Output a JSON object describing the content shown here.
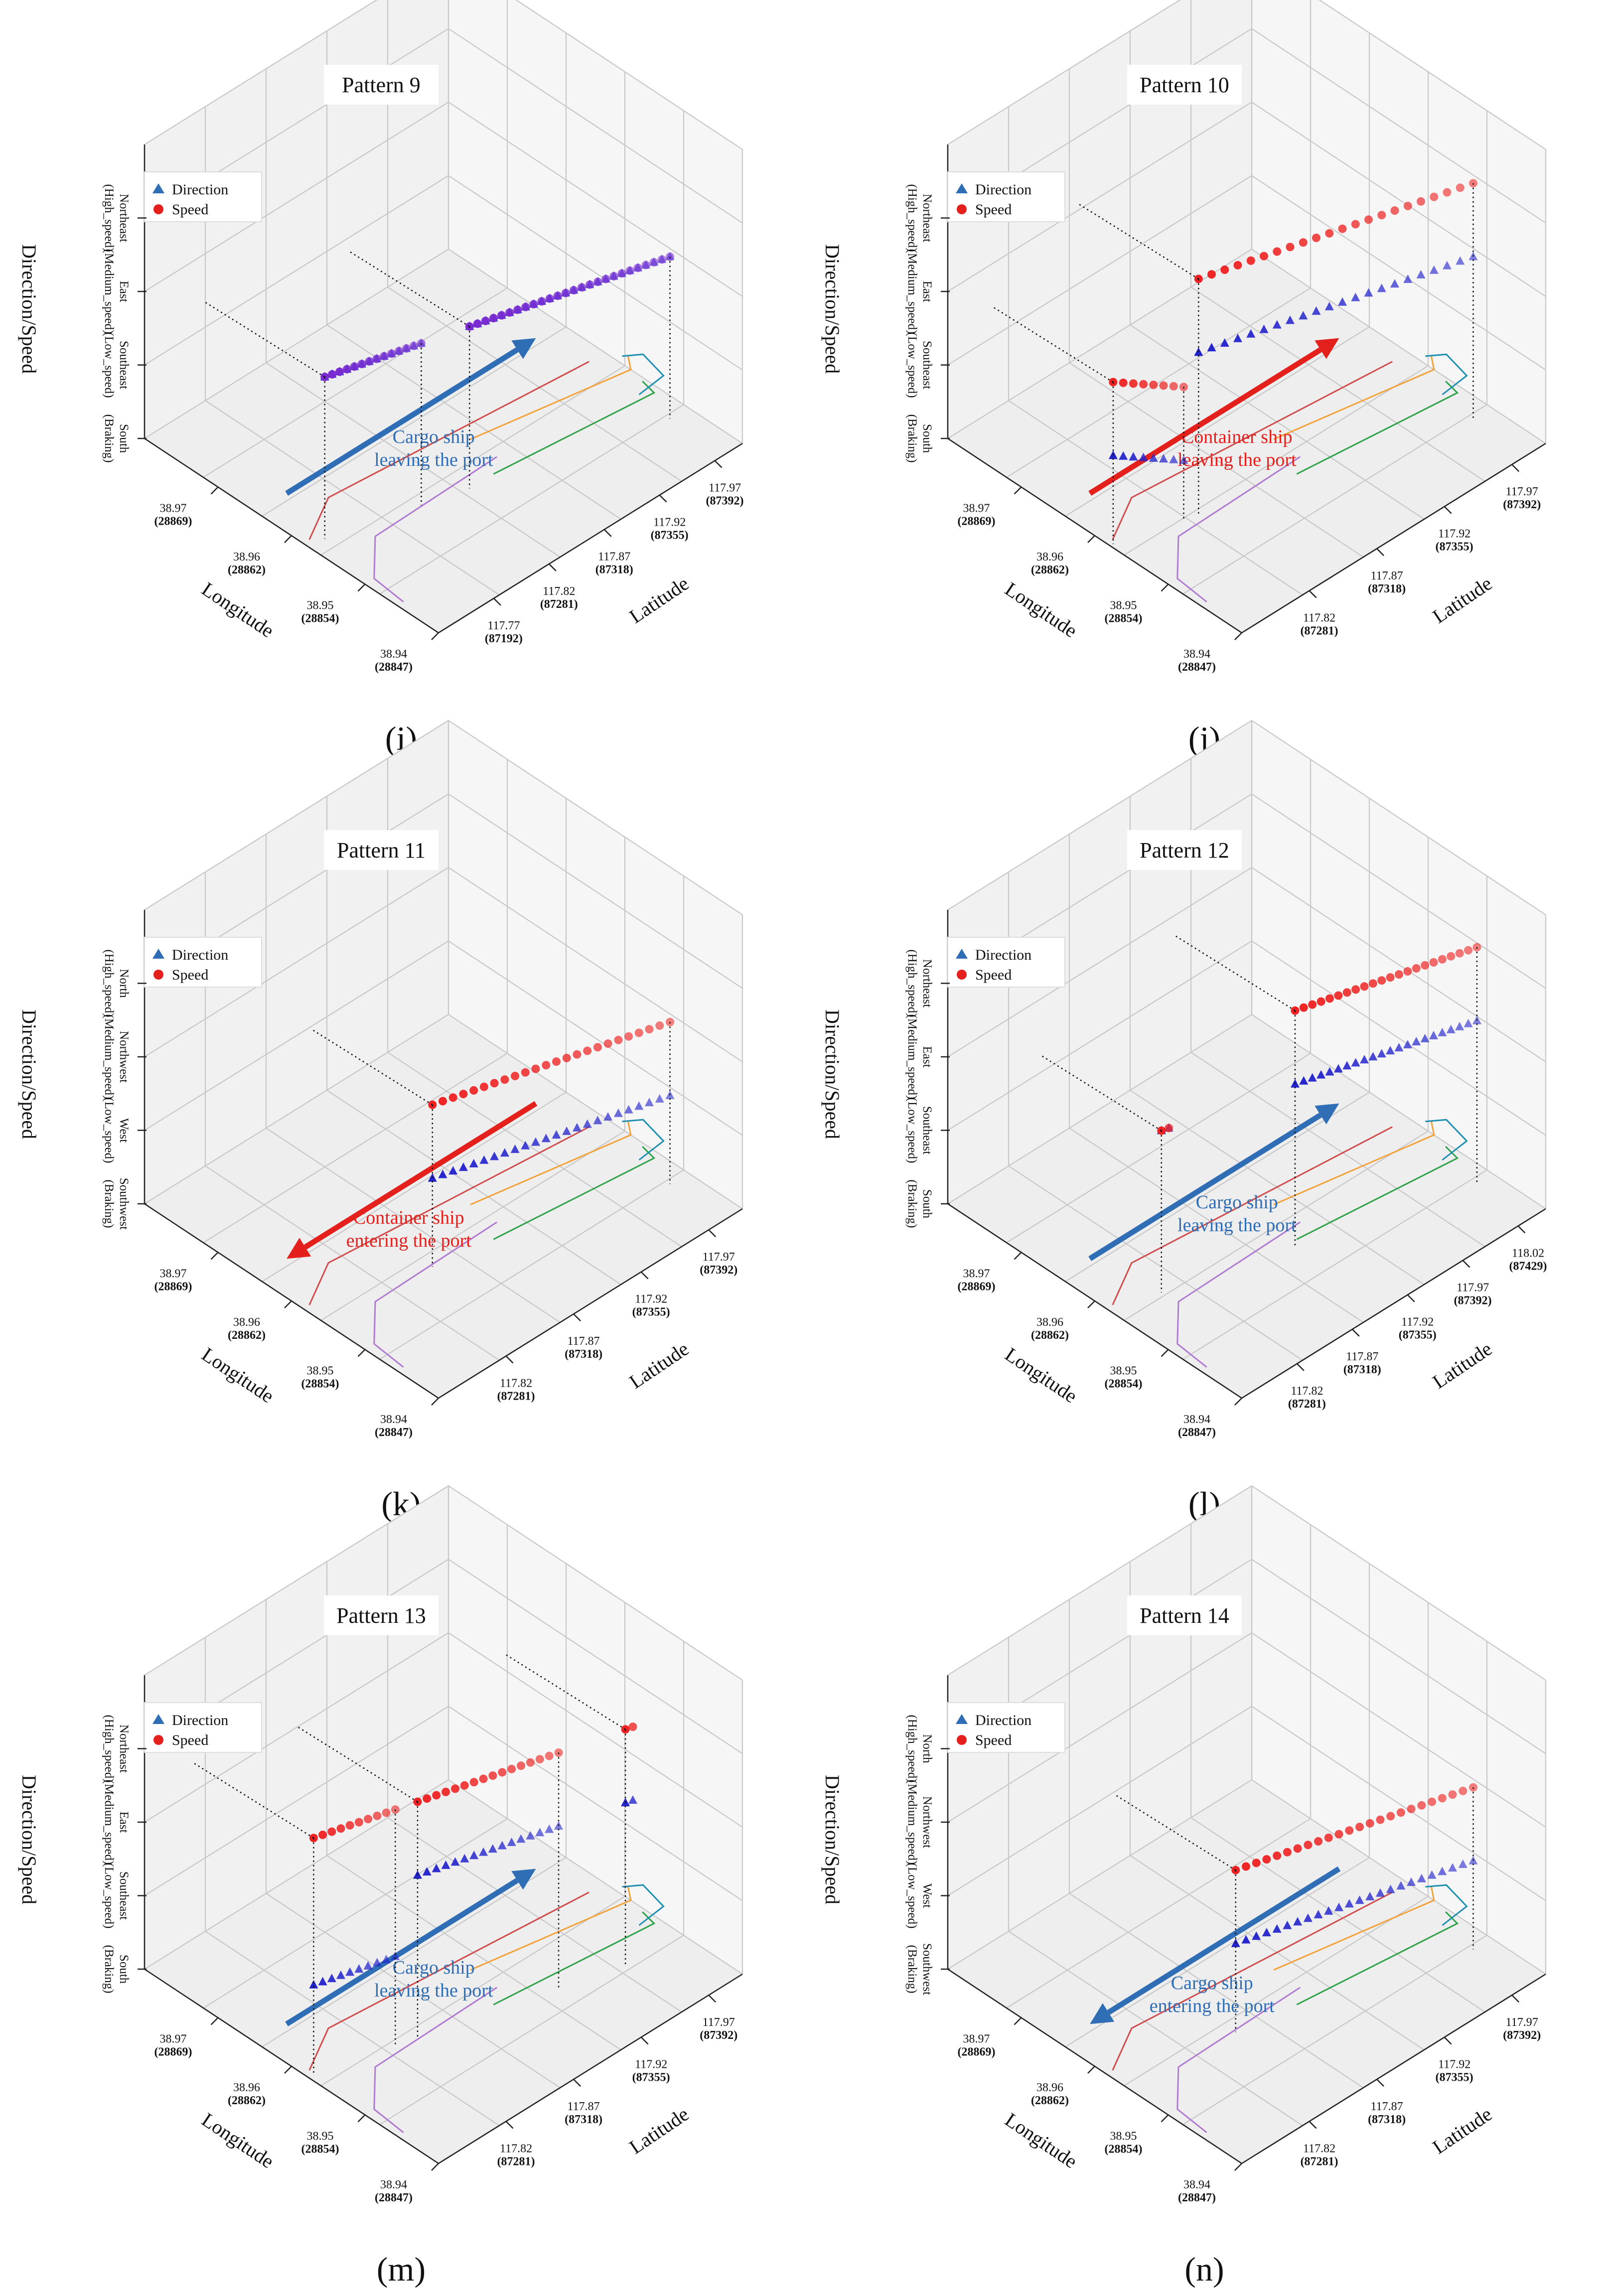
{
  "figure": {
    "sub_labels": [
      "(i)",
      "(j)",
      "(k)",
      "(l)",
      "(m)",
      "(n)"
    ]
  },
  "chart_data": [
    {
      "type": "scatter3d",
      "title": "Pattern 9",
      "xlabel": "Longitude",
      "ylabel": "Latitude",
      "zlabel": "Direction/Speed",
      "longitude_ticks": [
        {
          "main": "38.97",
          "sub": "(28869)"
        },
        {
          "main": "38.96",
          "sub": "(28862)"
        },
        {
          "main": "38.95",
          "sub": "(28854)"
        },
        {
          "main": "38.94",
          "sub": "(28847)"
        }
      ],
      "latitude_ticks": [
        {
          "main": "117.77",
          "sub": "(87192)"
        },
        {
          "main": "117.82",
          "sub": "(87281)"
        },
        {
          "main": "117.87",
          "sub": "(87318)"
        },
        {
          "main": "117.92",
          "sub": "(87355)"
        },
        {
          "main": "117.97",
          "sub": "(87392)"
        }
      ],
      "z_categories": [
        "South\n(Braking)",
        "Southeast\n(Low_speed)",
        "East\n(Medium_speed)",
        "Northeast\n(High_speed)"
      ],
      "legend": [
        {
          "label": "Direction",
          "marker": "triangle",
          "color": "#2f6db5"
        },
        {
          "label": "Speed",
          "marker": "circle",
          "color": "#e3201c"
        }
      ],
      "series": [
        {
          "name": "Direction",
          "color": "#2b2bd6",
          "segments": [
            {
              "t0": 0.05,
              "t1": 0.31,
              "level": 2,
              "n": 14
            },
            {
              "t0": 0.44,
              "t1": 0.98,
              "level": 2,
              "n": 26
            }
          ]
        },
        {
          "name": "Speed",
          "color": "#7a2bd0",
          "segments": [
            {
              "t0": 0.05,
              "t1": 0.31,
              "level": 2,
              "n": 14
            },
            {
              "t0": 0.44,
              "t1": 0.98,
              "level": 2,
              "n": 26
            }
          ]
        }
      ],
      "annotation": {
        "text": [
          "Cargo ship",
          "leaving the port"
        ],
        "color": "#2f6db5",
        "direction": "leaving"
      }
    },
    {
      "type": "scatter3d",
      "title": "Pattern 10",
      "xlabel": "Longitude",
      "ylabel": "Latitude",
      "zlabel": "Direction/Speed",
      "longitude_ticks": [
        {
          "main": "38.97",
          "sub": "(28869)"
        },
        {
          "main": "38.96",
          "sub": "(28862)"
        },
        {
          "main": "38.95",
          "sub": "(28854)"
        },
        {
          "main": "38.94",
          "sub": "(28847)"
        }
      ],
      "latitude_ticks": [
        {
          "main": "117.82",
          "sub": "(87281)"
        },
        {
          "main": "117.87",
          "sub": "(87318)"
        },
        {
          "main": "117.92",
          "sub": "(87355)"
        },
        {
          "main": "117.97",
          "sub": "(87392)"
        }
      ],
      "z_categories": [
        "South\n(Braking)",
        "Southeast\n(Low_speed)",
        "East\n(Medium_speed)",
        "Northeast\n(High_speed)"
      ],
      "legend": [
        {
          "label": "Direction",
          "marker": "triangle",
          "color": "#2f6db5"
        },
        {
          "label": "Speed",
          "marker": "circle",
          "color": "#e3201c"
        }
      ],
      "series": [
        {
          "name": "Direction",
          "color": "#2222cc",
          "segments": [
            {
              "t0": 0.01,
              "t1": 0.2,
              "level": 1,
              "n": 8,
              "fall": 0.4
            },
            {
              "t0": 0.24,
              "t1": 0.98,
              "level": 2,
              "n": 22
            }
          ]
        },
        {
          "name": "Speed",
          "color": "#ee2222",
          "segments": [
            {
              "t0": 0.01,
              "t1": 0.2,
              "level": 2,
              "n": 8,
              "fall": 0.4
            },
            {
              "t0": 0.24,
              "t1": 0.98,
              "level": 3,
              "n": 22
            }
          ]
        }
      ],
      "annotation": {
        "text": [
          "Container ship",
          "leaving the port"
        ],
        "color": "#e3201c",
        "direction": "leaving"
      }
    },
    {
      "type": "scatter3d",
      "title": "Pattern 11",
      "xlabel": "Longitude",
      "ylabel": "Latitude",
      "zlabel": "Direction/Speed",
      "longitude_ticks": [
        {
          "main": "38.97",
          "sub": "(28869)"
        },
        {
          "main": "38.96",
          "sub": "(28862)"
        },
        {
          "main": "38.95",
          "sub": "(28854)"
        },
        {
          "main": "38.94",
          "sub": "(28847)"
        }
      ],
      "latitude_ticks": [
        {
          "main": "117.82",
          "sub": "(87281)"
        },
        {
          "main": "117.87",
          "sub": "(87318)"
        },
        {
          "main": "117.92",
          "sub": "(87355)"
        },
        {
          "main": "117.97",
          "sub": "(87392)"
        }
      ],
      "z_categories": [
        "Southwest\n(Braking)",
        "West\n(Low_speed)",
        "Northwest\n(Medium_speed)",
        "North\n(High_speed)"
      ],
      "legend": [
        {
          "label": "Direction",
          "marker": "triangle",
          "color": "#2f6db5"
        },
        {
          "label": "Speed",
          "marker": "circle",
          "color": "#e3201c"
        }
      ],
      "series": [
        {
          "name": "Direction",
          "color": "#2222cc",
          "segments": [
            {
              "t0": 0.34,
              "t1": 0.98,
              "level": 1,
              "n": 24
            }
          ]
        },
        {
          "name": "Speed",
          "color": "#ee2222",
          "segments": [
            {
              "t0": 0.34,
              "t1": 0.98,
              "level": 2,
              "n": 24
            }
          ]
        }
      ],
      "annotation": {
        "text": [
          "Container ship",
          "entering the port"
        ],
        "color": "#e3201c",
        "direction": "entering"
      }
    },
    {
      "type": "scatter3d",
      "title": "Pattern 12",
      "xlabel": "Longitude",
      "ylabel": "Latitude",
      "zlabel": "Direction/Speed",
      "longitude_ticks": [
        {
          "main": "38.97",
          "sub": "(28869)"
        },
        {
          "main": "38.96",
          "sub": "(28862)"
        },
        {
          "main": "38.95",
          "sub": "(28854)"
        },
        {
          "main": "38.94",
          "sub": "(28847)"
        }
      ],
      "latitude_ticks": [
        {
          "main": "117.82",
          "sub": "(87281)"
        },
        {
          "main": "117.87",
          "sub": "(87318)"
        },
        {
          "main": "117.92",
          "sub": "(87355)"
        },
        {
          "main": "117.97",
          "sub": "(87392)"
        },
        {
          "main": "118.02",
          "sub": "(87429)"
        }
      ],
      "z_categories": [
        "South\n(Braking)",
        "Southeast\n(Low_speed)",
        "East\n(Medium_speed)",
        "Northeast\n(High_speed)"
      ],
      "legend": [
        {
          "label": "Direction",
          "marker": "triangle",
          "color": "#2f6db5"
        },
        {
          "label": "Speed",
          "marker": "circle",
          "color": "#e3201c"
        }
      ],
      "series": [
        {
          "name": "Direction",
          "color": "#2222cc",
          "segments": [
            {
              "t0": 0.14,
              "t1": 0.16,
              "level": 2,
              "n": 2
            },
            {
              "t0": 0.5,
              "t1": 0.99,
              "level": 2,
              "n": 22
            }
          ]
        },
        {
          "name": "Speed",
          "color": "#ee2222",
          "segments": [
            {
              "t0": 0.14,
              "t1": 0.16,
              "level": 2,
              "n": 2
            },
            {
              "t0": 0.5,
              "t1": 0.99,
              "level": 3,
              "n": 22
            }
          ]
        }
      ],
      "annotation": {
        "text": [
          "Cargo ship",
          "leaving the port"
        ],
        "color": "#2f6db5",
        "direction": "leaving"
      }
    },
    {
      "type": "scatter3d",
      "title": "Pattern 13",
      "xlabel": "Longitude",
      "ylabel": "Latitude",
      "zlabel": "Direction/Speed",
      "longitude_ticks": [
        {
          "main": "38.97",
          "sub": "(28869)"
        },
        {
          "main": "38.96",
          "sub": "(28862)"
        },
        {
          "main": "38.95",
          "sub": "(28854)"
        },
        {
          "main": "38.94",
          "sub": "(28847)"
        }
      ],
      "latitude_ticks": [
        {
          "main": "117.82",
          "sub": "(87281)"
        },
        {
          "main": "117.87",
          "sub": "(87318)"
        },
        {
          "main": "117.92",
          "sub": "(87355)"
        },
        {
          "main": "117.97",
          "sub": "(87392)"
        }
      ],
      "z_categories": [
        "South\n(Braking)",
        "Southeast\n(Low_speed)",
        "East\n(Medium_speed)",
        "Northeast\n(High_speed)"
      ],
      "legend": [
        {
          "label": "Direction",
          "marker": "triangle",
          "color": "#2f6db5"
        },
        {
          "label": "Speed",
          "marker": "circle",
          "color": "#e3201c"
        }
      ],
      "series": [
        {
          "name": "Direction",
          "color": "#2222cc",
          "segments": [
            {
              "t0": 0.02,
              "t1": 0.24,
              "level": 1,
              "n": 10
            },
            {
              "t0": 0.3,
              "t1": 0.68,
              "level": 2,
              "n": 16
            },
            {
              "t0": 0.86,
              "t1": 0.88,
              "level": 2,
              "n": 2
            }
          ]
        },
        {
          "name": "Speed",
          "color": "#ee2222",
          "segments": [
            {
              "t0": 0.02,
              "t1": 0.24,
              "level": 3,
              "n": 10
            },
            {
              "t0": 0.3,
              "t1": 0.68,
              "level": 3,
              "n": 16
            },
            {
              "t0": 0.86,
              "t1": 0.88,
              "level": 3,
              "n": 2
            }
          ]
        }
      ],
      "annotation": {
        "text": [
          "Cargo ship",
          "leaving the port"
        ],
        "color": "#2f6db5",
        "direction": "leaving"
      }
    },
    {
      "type": "scatter3d",
      "title": "Pattern 14",
      "xlabel": "Longitude",
      "ylabel": "Latitude",
      "zlabel": "Direction/Speed",
      "longitude_ticks": [
        {
          "main": "38.97",
          "sub": "(28869)"
        },
        {
          "main": "38.96",
          "sub": "(28862)"
        },
        {
          "main": "38.95",
          "sub": "(28854)"
        },
        {
          "main": "38.94",
          "sub": "(28847)"
        }
      ],
      "latitude_ticks": [
        {
          "main": "117.82",
          "sub": "(87281)"
        },
        {
          "main": "117.87",
          "sub": "(87318)"
        },
        {
          "main": "117.92",
          "sub": "(87355)"
        },
        {
          "main": "117.97",
          "sub": "(87392)"
        }
      ],
      "z_categories": [
        "Southwest\n(Braking)",
        "West\n(Low_speed)",
        "Northwest\n(Medium_speed)",
        "North\n(High_speed)"
      ],
      "legend": [
        {
          "label": "Direction",
          "marker": "triangle",
          "color": "#2f6db5"
        },
        {
          "label": "Speed",
          "marker": "circle",
          "color": "#e3201c"
        }
      ],
      "series": [
        {
          "name": "Direction",
          "color": "#2222cc",
          "segments": [
            {
              "t0": 0.34,
              "t1": 0.98,
              "level": 1,
              "n": 24
            }
          ]
        },
        {
          "name": "Speed",
          "color": "#ee2222",
          "segments": [
            {
              "t0": 0.34,
              "t1": 0.98,
              "level": 2,
              "n": 24
            }
          ]
        }
      ],
      "annotation": {
        "text": [
          "Cargo ship",
          "entering the port"
        ],
        "color": "#2f6db5",
        "direction": "entering"
      }
    }
  ]
}
